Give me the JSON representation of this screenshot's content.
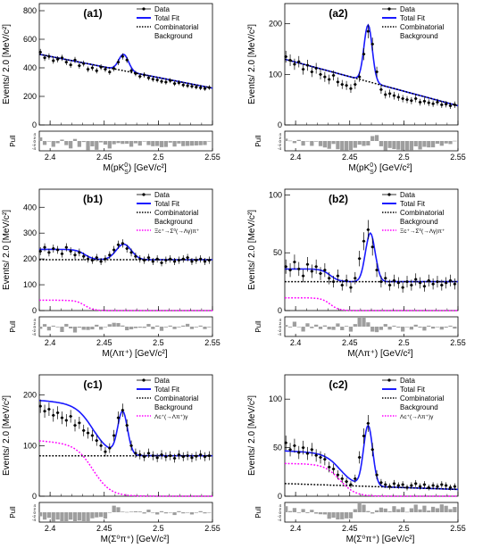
{
  "styles": {
    "data_color": "#000000",
    "total_fit_color": "#1a1aff",
    "background_color": "#000000",
    "peaking_color": "#ff00ff",
    "pull_bar_color": "#9e9e9e"
  },
  "chart_data": [
    {
      "id": "a1",
      "type": "scatter",
      "panel_label": "(a1)",
      "xlabel": "M(pK",
      "xlabel_sub": "S",
      "xlabel_sup": "0",
      "xlabel_tail": ") [GeV/c²]",
      "ylabel": "Events/ 2.0 [MeV/c²]",
      "xlim": [
        2.39,
        2.55
      ],
      "ylim": [
        0,
        850
      ],
      "yticks": [
        0,
        200,
        400,
        600,
        800
      ],
      "xticks": [
        "2.4",
        "2.45",
        "2.5",
        "2.55"
      ],
      "legend": [
        "Data",
        "Total Fit",
        "Combinatorial",
        "Background"
      ],
      "pull_label": "Pull",
      "pull_ticks": [
        "4",
        "2",
        "0",
        "-2",
        "-4"
      ],
      "series": [
        {
          "name": "Data",
          "x": [
            2.391,
            2.395,
            2.399,
            2.403,
            2.407,
            2.411,
            2.415,
            2.419,
            2.423,
            2.427,
            2.431,
            2.435,
            2.439,
            2.443,
            2.447,
            2.451,
            2.455,
            2.459,
            2.463,
            2.467,
            2.471,
            2.475,
            2.479,
            2.483,
            2.487,
            2.491,
            2.495,
            2.499,
            2.503,
            2.507,
            2.511,
            2.515,
            2.519,
            2.523,
            2.527,
            2.531,
            2.535,
            2.539,
            2.543,
            2.547
          ],
          "y": [
            510,
            470,
            480,
            450,
            460,
            470,
            440,
            420,
            455,
            415,
            430,
            390,
            400,
            380,
            405,
            390,
            370,
            395,
            440,
            480,
            455,
            380,
            360,
            340,
            350,
            330,
            320,
            315,
            305,
            300,
            310,
            290,
            295,
            280,
            275,
            270,
            265,
            260,
            255,
            262
          ]
        },
        {
          "name": "Total Fit",
          "model": {
            "a": 495,
            "b": 258,
            "amp": 115,
            "mu": 2.468,
            "sigma": 0.0045
          }
        },
        {
          "name": "Combinatorial Background",
          "model": {
            "a": 495,
            "b": 258
          }
        }
      ]
    },
    {
      "id": "a2",
      "type": "scatter",
      "panel_label": "(a2)",
      "xlabel": "M(pK",
      "xlabel_sub": "S",
      "xlabel_sup": "0",
      "xlabel_tail": ") [GeV/c²]",
      "ylabel": "Events/ 2.0 [MeV/c²]",
      "xlim": [
        2.39,
        2.55
      ],
      "ylim": [
        0,
        240
      ],
      "yticks": [
        0,
        100,
        200
      ],
      "xticks": [
        "2.4",
        "2.45",
        "2.5",
        "2.55"
      ],
      "legend": [
        "Data",
        "Total Fit",
        "Combinatorial",
        "Background"
      ],
      "pull_label": "Pull",
      "pull_ticks": [
        "4",
        "2",
        "0",
        "-2",
        "-4"
      ],
      "series": [
        {
          "name": "Data",
          "x": [
            2.391,
            2.395,
            2.399,
            2.403,
            2.407,
            2.411,
            2.415,
            2.419,
            2.423,
            2.427,
            2.431,
            2.435,
            2.439,
            2.443,
            2.447,
            2.451,
            2.455,
            2.459,
            2.463,
            2.467,
            2.471,
            2.475,
            2.479,
            2.483,
            2.487,
            2.491,
            2.495,
            2.499,
            2.503,
            2.507,
            2.511,
            2.515,
            2.519,
            2.523,
            2.527,
            2.531,
            2.535,
            2.539,
            2.543,
            2.547
          ],
          "y": [
            135,
            128,
            120,
            125,
            110,
            118,
            105,
            112,
            100,
            95,
            90,
            98,
            85,
            80,
            78,
            72,
            80,
            95,
            140,
            185,
            160,
            105,
            70,
            60,
            62,
            58,
            55,
            52,
            50,
            48,
            52,
            45,
            47,
            44,
            42,
            45,
            40,
            41,
            38,
            40
          ]
        },
        {
          "name": "Total Fit",
          "model": {
            "a": 130,
            "b": 38,
            "amp": 112,
            "mu": 2.467,
            "sigma": 0.0038
          }
        },
        {
          "name": "Combinatorial Background",
          "model": {
            "a": 130,
            "b": 38
          }
        }
      ]
    },
    {
      "id": "b1",
      "type": "scatter",
      "panel_label": "(b1)",
      "xlabel": "M(Λπ⁺) [GeV/c²]",
      "ylabel": "Events/ 2.0 [MeV/c²]",
      "xlim": [
        2.39,
        2.55
      ],
      "ylim": [
        0,
        470
      ],
      "yticks": [
        0,
        100,
        200,
        300,
        400
      ],
      "xticks": [
        "2.4",
        "2.45",
        "2.5",
        "2.55"
      ],
      "legend": [
        "Data",
        "Total Fit",
        "Combinatorial",
        "Background",
        "Ξc⁺→Σ⁰(→Λγ)π⁺"
      ],
      "pull_label": "Pull",
      "pull_ticks": [
        "4",
        "2",
        "0",
        "-2",
        "-4"
      ],
      "series": [
        {
          "name": "Data",
          "x": [
            2.391,
            2.395,
            2.399,
            2.403,
            2.407,
            2.411,
            2.415,
            2.419,
            2.423,
            2.427,
            2.431,
            2.435,
            2.439,
            2.443,
            2.447,
            2.451,
            2.455,
            2.459,
            2.463,
            2.467,
            2.471,
            2.475,
            2.479,
            2.483,
            2.487,
            2.491,
            2.495,
            2.499,
            2.503,
            2.507,
            2.511,
            2.515,
            2.519,
            2.523,
            2.527,
            2.531,
            2.535,
            2.539,
            2.543,
            2.547
          ],
          "y": [
            230,
            245,
            225,
            240,
            235,
            220,
            245,
            230,
            215,
            225,
            210,
            200,
            195,
            205,
            190,
            200,
            215,
            235,
            255,
            260,
            240,
            225,
            210,
            200,
            195,
            205,
            190,
            200,
            185,
            195,
            200,
            190,
            195,
            200,
            205,
            190,
            195,
            200,
            190,
            195
          ]
        },
        {
          "name": "Total Fit",
          "model": {
            "a": 197,
            "b": 197,
            "amp": 60,
            "mu": 2.468,
            "sigma": 0.007,
            "comp": {
              "h": 40,
              "c": 2.432,
              "w": 0.004
            }
          }
        },
        {
          "name": "Combinatorial Background",
          "model": {
            "a": 197,
            "b": 197
          }
        },
        {
          "name": "Ξc⁺→Σ⁰(→Λγ)π⁺",
          "model": {
            "h": 40,
            "c": 2.432,
            "w": 0.004
          }
        }
      ]
    },
    {
      "id": "b2",
      "type": "scatter",
      "panel_label": "(b2)",
      "xlabel": "M(Λπ⁺) [GeV/c²]",
      "ylabel": "Events/ 2.0 [MeV/c²]",
      "xlim": [
        2.39,
        2.55
      ],
      "ylim": [
        0,
        105
      ],
      "yticks": [
        0,
        50,
        100
      ],
      "xticks": [
        "2.4",
        "2.45",
        "2.5",
        "2.55"
      ],
      "legend": [
        "Data",
        "Total Fit",
        "Combinatorial",
        "Background",
        "Ξc⁺→Σ⁰(→Λγ)π⁺"
      ],
      "pull_label": "Pull",
      "pull_ticks": [
        "4",
        "2",
        "0",
        "-2",
        "-4"
      ],
      "series": [
        {
          "name": "Data",
          "x": [
            2.391,
            2.395,
            2.399,
            2.403,
            2.407,
            2.411,
            2.415,
            2.419,
            2.423,
            2.427,
            2.431,
            2.435,
            2.439,
            2.443,
            2.447,
            2.451,
            2.455,
            2.459,
            2.463,
            2.467,
            2.471,
            2.475,
            2.479,
            2.483,
            2.487,
            2.491,
            2.495,
            2.499,
            2.503,
            2.507,
            2.511,
            2.515,
            2.519,
            2.523,
            2.527,
            2.531,
            2.535,
            2.539,
            2.543,
            2.547
          ],
          "y": [
            38,
            35,
            42,
            36,
            30,
            40,
            34,
            38,
            32,
            35,
            28,
            25,
            30,
            22,
            26,
            20,
            28,
            45,
            60,
            70,
            55,
            35,
            25,
            28,
            22,
            26,
            24,
            20,
            25,
            22,
            27,
            24,
            21,
            26,
            23,
            25,
            22,
            24,
            26,
            23
          ]
        },
        {
          "name": "Total Fit",
          "model": {
            "a": 25,
            "b": 25,
            "amp": 42,
            "mu": 2.469,
            "sigma": 0.0045,
            "comp": {
              "h": 11,
              "c": 2.432,
              "w": 0.004
            }
          }
        },
        {
          "name": "Combinatorial Background",
          "model": {
            "a": 25,
            "b": 25
          }
        },
        {
          "name": "Ξc⁺→Σ⁰(→Λγ)π⁺",
          "model": {
            "h": 11,
            "c": 2.432,
            "w": 0.004
          }
        }
      ]
    },
    {
      "id": "c1",
      "type": "scatter",
      "panel_label": "(c1)",
      "xlabel": "M(Σ⁰π⁺) [GeV/c²]",
      "ylabel": "Events/ 2.0 [MeV/c²]",
      "xlim": [
        2.39,
        2.55
      ],
      "ylim": [
        0,
        240
      ],
      "yticks": [
        0,
        100,
        200
      ],
      "xticks": [
        "2.4",
        "2.45",
        "2.5",
        "2.55"
      ],
      "legend": [
        "Data",
        "Total Fit",
        "Combinatorial",
        "Background",
        "Λc⁺(→Λπ⁺)γ"
      ],
      "pull_label": "Pull",
      "pull_ticks": [
        "4",
        "2",
        "0",
        "-2",
        "-4"
      ],
      "series": [
        {
          "name": "Data",
          "x": [
            2.391,
            2.395,
            2.399,
            2.403,
            2.407,
            2.411,
            2.415,
            2.419,
            2.423,
            2.427,
            2.431,
            2.435,
            2.439,
            2.443,
            2.447,
            2.451,
            2.455,
            2.459,
            2.463,
            2.467,
            2.471,
            2.475,
            2.479,
            2.483,
            2.487,
            2.491,
            2.495,
            2.499,
            2.503,
            2.507,
            2.511,
            2.515,
            2.519,
            2.523,
            2.527,
            2.531,
            2.535,
            2.539,
            2.543,
            2.547
          ],
          "y": [
            178,
            168,
            172,
            160,
            165,
            155,
            150,
            158,
            140,
            145,
            130,
            125,
            120,
            110,
            100,
            88,
            95,
            120,
            155,
            170,
            140,
            100,
            85,
            82,
            78,
            85,
            80,
            76,
            82,
            78,
            80,
            75,
            82,
            78,
            80,
            76,
            79,
            82,
            78,
            80
          ]
        },
        {
          "name": "Total Fit",
          "model": {
            "a": 80,
            "b": 80,
            "amp": 85,
            "mu": 2.467,
            "sigma": 0.0045,
            "comp": {
              "h": 102,
              "c": 2.44,
              "w": 0.008,
              "slope": 150
            }
          }
        },
        {
          "name": "Combinatorial Background",
          "model": {
            "a": 80,
            "b": 80
          }
        },
        {
          "name": "Λc⁺(→Λπ⁺)γ",
          "model": {
            "h": 102,
            "c": 2.44,
            "w": 0.008,
            "slope": 150
          }
        }
      ]
    },
    {
      "id": "c2",
      "type": "scatter",
      "panel_label": "(c2)",
      "xlabel": "M(Σ⁰π⁺) [GeV/c²]",
      "ylabel": "Events/ 2.0 [MeV/c²]",
      "xlim": [
        2.39,
        2.55
      ],
      "ylim": [
        0,
        125
      ],
      "yticks": [
        0,
        50,
        100
      ],
      "xticks": [
        "2.4",
        "2.45",
        "2.5",
        "2.55"
      ],
      "legend": [
        "Data",
        "Total Fit",
        "Combinatorial",
        "Background",
        "Λc⁺(→Λπ⁺)γ"
      ],
      "pull_label": "Pull",
      "pull_ticks": [
        "4",
        "2",
        "0",
        "-2",
        "-4"
      ],
      "series": [
        {
          "name": "Data",
          "x": [
            2.391,
            2.395,
            2.399,
            2.403,
            2.407,
            2.411,
            2.415,
            2.419,
            2.423,
            2.427,
            2.431,
            2.435,
            2.439,
            2.443,
            2.447,
            2.451,
            2.455,
            2.459,
            2.463,
            2.467,
            2.471,
            2.475,
            2.479,
            2.483,
            2.487,
            2.491,
            2.495,
            2.499,
            2.503,
            2.507,
            2.511,
            2.515,
            2.519,
            2.523,
            2.527,
            2.531,
            2.535,
            2.539,
            2.543,
            2.547
          ],
          "y": [
            55,
            48,
            52,
            45,
            50,
            44,
            48,
            42,
            40,
            38,
            30,
            28,
            22,
            18,
            15,
            12,
            18,
            40,
            62,
            75,
            48,
            22,
            14,
            12,
            10,
            13,
            11,
            12,
            9,
            11,
            13,
            10,
            12,
            9,
            11,
            10,
            12,
            11,
            9,
            10
          ]
        },
        {
          "name": "Total Fit",
          "model": {
            "a": 13,
            "b": 7,
            "amp": 62,
            "mu": 2.467,
            "sigma": 0.0042,
            "comp": {
              "h": 33,
              "c": 2.441,
              "w": 0.007,
              "slope": 40
            }
          }
        },
        {
          "name": "Combinatorial Background",
          "model": {
            "a": 13,
            "b": 7
          }
        },
        {
          "name": "Λc⁺(→Λπ⁺)γ",
          "model": {
            "h": 33,
            "c": 2.441,
            "w": 0.007,
            "slope": 40
          }
        }
      ]
    }
  ]
}
